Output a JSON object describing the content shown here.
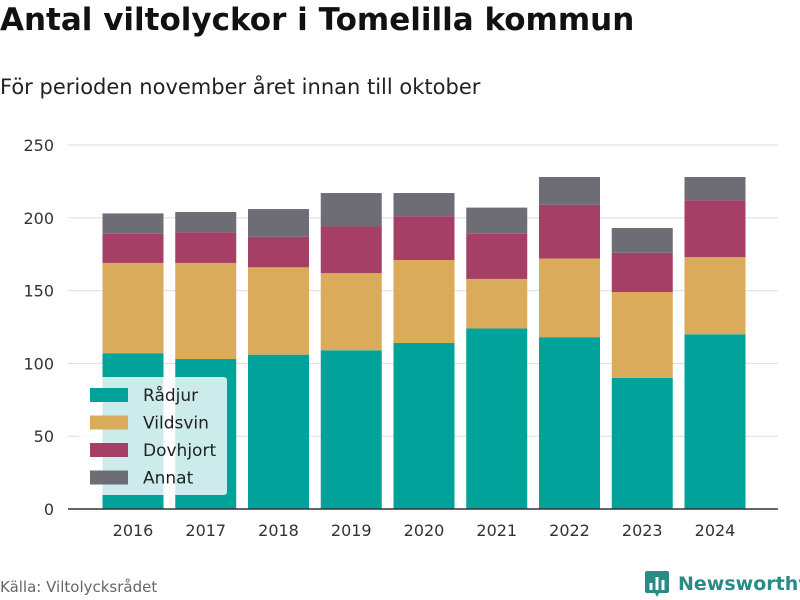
{
  "title": "Antal viltolyckor i Tomelilla kommun",
  "subtitle": "För perioden november året innan till oktober",
  "source": "Källa: Viltolycksrådet",
  "brand": {
    "name": "Newsworthy",
    "icon": "bar-chart-logo-icon",
    "color": "#2a8a86"
  },
  "chart_data": {
    "type": "bar",
    "stacked": true,
    "categories": [
      "2016",
      "2017",
      "2018",
      "2019",
      "2020",
      "2021",
      "2022",
      "2023",
      "2024"
    ],
    "series": [
      {
        "name": "Rådjur",
        "color": "#00a29a",
        "values": [
          107,
          103,
          106,
          109,
          114,
          124,
          118,
          90,
          120
        ]
      },
      {
        "name": "Vildsvin",
        "color": "#d9ab5a",
        "values": [
          62,
          66,
          60,
          53,
          57,
          34,
          54,
          59,
          53
        ]
      },
      {
        "name": "Dovhjort",
        "color": "#a53f66",
        "values": [
          20,
          21,
          21,
          32,
          30,
          31,
          37,
          27,
          39
        ]
      },
      {
        "name": "Annat",
        "color": "#6e6c74",
        "values": [
          14,
          14,
          19,
          23,
          16,
          18,
          19,
          17,
          16
        ]
      }
    ],
    "ylim": [
      0,
      250
    ],
    "yticks": [
      0,
      50,
      100,
      150,
      200,
      250
    ],
    "xlabel": "",
    "ylabel": "",
    "grid": true,
    "legend_position": "bottom-left"
  }
}
